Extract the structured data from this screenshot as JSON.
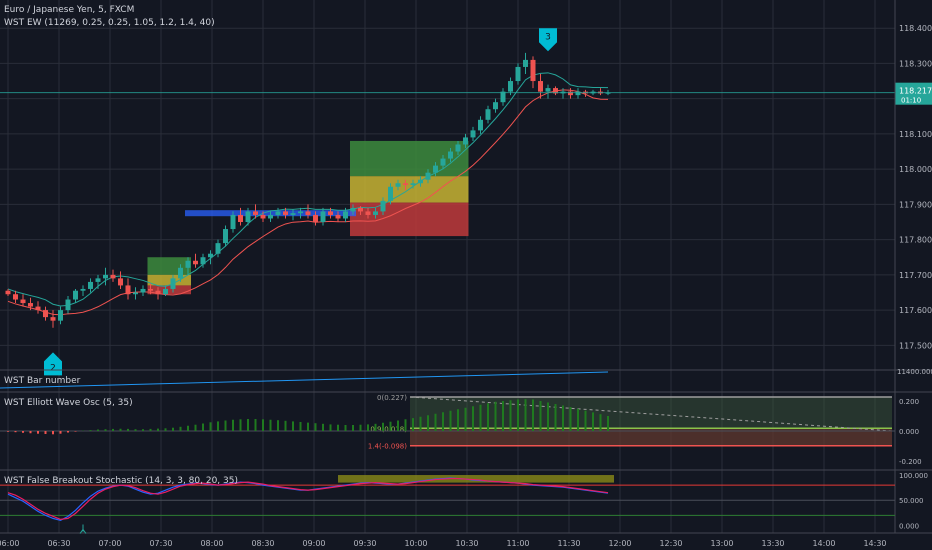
{
  "header": {
    "symbol": "Euro / Japanese Yen, 5, FXCM",
    "indicator": "WST EW (11269, 0.25, 0.25, 1.05, 1.2, 1.4, 40)"
  },
  "panes": {
    "bar_number": {
      "title": "WST Bar number",
      "value_label": "11400.000",
      "line_color": "#2196f3"
    },
    "ewo": {
      "title": "WST Elliott Wave Osc (5, 35)",
      "level_labels": [
        "0(0.227)",
        "0.9(0.018)",
        "1.4(-0.098)"
      ],
      "ticks": [
        "0.200",
        "0.000",
        "-0.200"
      ]
    },
    "stoch": {
      "title": "WST False Breakout Stochastic (14, 3, 3, 80, 20, 35)",
      "ticks": [
        "100.000",
        "50.000",
        "0.000"
      ]
    }
  },
  "main": {
    "price_ticks": [
      "118.400",
      "118.300",
      "118.200",
      "118.100",
      "118.000",
      "117.900",
      "117.800",
      "117.700",
      "117.600",
      "117.500"
    ],
    "last_price": "118.217",
    "countdown": "01:10",
    "wave_labels": [
      {
        "label": "2",
        "price": 117.48,
        "bar": 6
      },
      {
        "label": "3",
        "price": 118.36,
        "bar": 72
      }
    ]
  },
  "time_axis": [
    "06:00",
    "06:30",
    "07:00",
    "07:30",
    "08:00",
    "08:30",
    "09:00",
    "09:30",
    "10:00",
    "10:30",
    "11:00",
    "11:30",
    "12:00",
    "12:30",
    "13:00",
    "13:30",
    "14:00",
    "14:30"
  ],
  "colors": {
    "background": "#131722",
    "grid": "#2a2e39",
    "up": "#26a69a",
    "down": "#ef5350",
    "zone_green": "#3d8b3d",
    "zone_yellow": "#c8b432",
    "zone_red": "#c0393b",
    "hline": "#2962ff",
    "ewo_bar": "#1f7a1f",
    "stoch_k": "#2962ff",
    "stoch_d": "#e91e63",
    "marker": "#00bcd4"
  },
  "chart_data": [
    {
      "type": "candlestick",
      "title": "Euro / Japanese Yen, 5, FXCM",
      "y_range": [
        117.43,
        118.48
      ],
      "bar_count": 81,
      "candles": [
        [
          117.655,
          117.66,
          117.64,
          117.645
        ],
        [
          117.645,
          117.655,
          117.62,
          117.63
        ],
        [
          117.63,
          117.645,
          117.61,
          117.62
        ],
        [
          117.62,
          117.635,
          117.6,
          117.61
        ],
        [
          117.61,
          117.625,
          117.59,
          117.6
        ],
        [
          117.6,
          117.61,
          117.57,
          117.58
        ],
        [
          117.58,
          117.6,
          117.55,
          117.57
        ],
        [
          117.57,
          117.61,
          117.56,
          117.6
        ],
        [
          117.6,
          117.64,
          117.59,
          117.63
        ],
        [
          117.63,
          117.66,
          117.62,
          117.655
        ],
        [
          117.655,
          117.67,
          117.64,
          117.66
        ],
        [
          117.66,
          117.69,
          117.65,
          117.68
        ],
        [
          117.68,
          117.7,
          117.66,
          117.69
        ],
        [
          117.69,
          117.72,
          117.67,
          117.7
        ],
        [
          117.7,
          117.715,
          117.68,
          117.69
        ],
        [
          117.69,
          117.71,
          117.66,
          117.67
        ],
        [
          117.67,
          117.69,
          117.63,
          117.645
        ],
        [
          117.645,
          117.665,
          117.63,
          117.65
        ],
        [
          117.65,
          117.67,
          117.64,
          117.66
        ],
        [
          117.66,
          117.675,
          117.645,
          117.655
        ],
        [
          117.655,
          117.665,
          117.63,
          117.645
        ],
        [
          117.645,
          117.67,
          117.64,
          117.66
        ],
        [
          117.66,
          117.7,
          117.65,
          117.69
        ],
        [
          117.69,
          117.73,
          117.68,
          117.72
        ],
        [
          117.72,
          117.75,
          117.7,
          117.74
        ],
        [
          117.74,
          117.76,
          117.72,
          117.73
        ],
        [
          117.73,
          117.76,
          117.72,
          117.75
        ],
        [
          117.75,
          117.77,
          117.73,
          117.76
        ],
        [
          117.76,
          117.8,
          117.75,
          117.79
        ],
        [
          117.79,
          117.84,
          117.78,
          117.83
        ],
        [
          117.83,
          117.88,
          117.82,
          117.87
        ],
        [
          117.87,
          117.89,
          117.84,
          117.85
        ],
        [
          117.85,
          117.89,
          117.84,
          117.88
        ],
        [
          117.88,
          117.9,
          117.86,
          117.87
        ],
        [
          117.87,
          117.88,
          117.85,
          117.86
        ],
        [
          117.86,
          117.88,
          117.85,
          117.87
        ],
        [
          117.87,
          117.89,
          117.86,
          117.88
        ],
        [
          117.88,
          117.89,
          117.86,
          117.87
        ],
        [
          117.87,
          117.885,
          117.855,
          117.875
        ],
        [
          117.875,
          117.89,
          117.86,
          117.88
        ],
        [
          117.88,
          117.9,
          117.86,
          117.87
        ],
        [
          117.87,
          117.88,
          117.84,
          117.85
        ],
        [
          117.85,
          117.89,
          117.84,
          117.88
        ],
        [
          117.88,
          117.89,
          117.86,
          117.87
        ],
        [
          117.87,
          117.88,
          117.85,
          117.86
        ],
        [
          117.86,
          117.89,
          117.85,
          117.88
        ],
        [
          117.88,
          117.9,
          117.87,
          117.89
        ],
        [
          117.89,
          117.895,
          117.87,
          117.88
        ],
        [
          117.88,
          117.89,
          117.86,
          117.87
        ],
        [
          117.87,
          117.89,
          117.86,
          117.88
        ],
        [
          117.88,
          117.92,
          117.87,
          117.91
        ],
        [
          117.91,
          117.96,
          117.9,
          117.95
        ],
        [
          117.95,
          117.97,
          117.94,
          117.96
        ],
        [
          117.96,
          117.97,
          117.94,
          117.955
        ],
        [
          117.955,
          117.97,
          117.945,
          117.96
        ],
        [
          117.96,
          117.98,
          117.95,
          117.97
        ],
        [
          117.97,
          118.0,
          117.96,
          117.99
        ],
        [
          117.99,
          118.02,
          117.98,
          118.01
        ],
        [
          118.01,
          118.04,
          118.0,
          118.03
        ],
        [
          118.03,
          118.06,
          118.02,
          118.05
        ],
        [
          118.05,
          118.08,
          118.04,
          118.07
        ],
        [
          118.07,
          118.1,
          118.06,
          118.09
        ],
        [
          118.09,
          118.12,
          118.08,
          118.11
        ],
        [
          118.11,
          118.15,
          118.1,
          118.14
        ],
        [
          118.14,
          118.18,
          118.13,
          118.17
        ],
        [
          118.17,
          118.2,
          118.16,
          118.19
        ],
        [
          118.19,
          118.23,
          118.18,
          118.22
        ],
        [
          118.22,
          118.26,
          118.21,
          118.25
        ],
        [
          118.25,
          118.3,
          118.24,
          118.29
        ],
        [
          118.29,
          118.33,
          118.27,
          118.31
        ],
        [
          118.31,
          118.32,
          118.23,
          118.25
        ],
        [
          118.25,
          118.27,
          118.2,
          118.22
        ],
        [
          118.22,
          118.24,
          118.2,
          118.23
        ],
        [
          118.23,
          118.235,
          118.21,
          118.215
        ],
        [
          118.215,
          118.23,
          118.2,
          118.22
        ],
        [
          118.22,
          118.23,
          118.2,
          118.21
        ],
        [
          118.21,
          118.23,
          118.2,
          118.22
        ],
        [
          118.22,
          118.225,
          118.205,
          118.215
        ],
        [
          118.215,
          118.225,
          118.21,
          118.22
        ],
        [
          118.22,
          118.23,
          118.21,
          118.215
        ],
        [
          118.215,
          118.225,
          118.21,
          118.217
        ]
      ],
      "zones": [
        {
          "from_bar": 19,
          "to_bar": 24,
          "green": [
            117.75,
            117.7
          ],
          "yellow": [
            117.7,
            117.67
          ],
          "red": [
            117.67,
            117.645
          ]
        },
        {
          "from_bar": 46,
          "to_bar": 61,
          "green": [
            118.08,
            117.98
          ],
          "yellow": [
            117.98,
            117.905
          ],
          "red": [
            117.905,
            117.81
          ]
        }
      ],
      "horizontal_line": {
        "from_bar": 24,
        "to_bar": 46,
        "price": 117.875
      }
    },
    {
      "type": "bar",
      "title": "WST Elliott Wave Osc (5, 35)",
      "y_range": [
        -0.26,
        0.26
      ],
      "values": [
        -0.005,
        -0.008,
        -0.012,
        -0.015,
        -0.018,
        -0.02,
        -0.022,
        -0.018,
        -0.01,
        -0.004,
        0.002,
        0.006,
        0.01,
        0.012,
        0.014,
        0.015,
        0.014,
        0.012,
        0.012,
        0.014,
        0.016,
        0.018,
        0.022,
        0.028,
        0.035,
        0.042,
        0.05,
        0.058,
        0.064,
        0.07,
        0.075,
        0.078,
        0.08,
        0.08,
        0.078,
        0.075,
        0.072,
        0.068,
        0.064,
        0.06,
        0.056,
        0.052,
        0.048,
        0.044,
        0.042,
        0.04,
        0.04,
        0.042,
        0.044,
        0.048,
        0.055,
        0.062,
        0.07,
        0.078,
        0.086,
        0.095,
        0.105,
        0.115,
        0.125,
        0.135,
        0.145,
        0.155,
        0.165,
        0.175,
        0.185,
        0.195,
        0.2,
        0.205,
        0.21,
        0.212,
        0.21,
        0.2,
        0.19,
        0.18,
        0.17,
        0.16,
        0.148,
        0.136,
        0.124,
        0.112,
        0.1
      ]
    },
    {
      "type": "line",
      "title": "WST False Breakout Stochastic (14, 3, 3, 80, 20, 35)",
      "y_range": [
        -15,
        110
      ],
      "series": [
        {
          "values": [
            62,
            55,
            48,
            38,
            28,
            20,
            14,
            10,
            18,
            30,
            45,
            58,
            68,
            74,
            78,
            80,
            78,
            72,
            66,
            62,
            64,
            70,
            76,
            80,
            82,
            84,
            83,
            81,
            80,
            82,
            84,
            86,
            85,
            83,
            80,
            78,
            76,
            74,
            72,
            70,
            70,
            72,
            74,
            76,
            78,
            80,
            82,
            84,
            85,
            84,
            83,
            82,
            82,
            84,
            86,
            88,
            90,
            92,
            93,
            94,
            93,
            92,
            90,
            89,
            88,
            87,
            86,
            85,
            84,
            82,
            80,
            79,
            78,
            77,
            76,
            74,
            72,
            70,
            68,
            66,
            64
          ]
        },
        {
          "values": [
            65,
            60,
            52,
            42,
            32,
            24,
            18,
            12,
            14,
            24,
            38,
            52,
            64,
            72,
            77,
            80,
            79,
            75,
            69,
            64,
            62,
            66,
            72,
            78,
            81,
            83,
            84,
            82,
            80,
            81,
            83,
            85,
            86,
            84,
            82,
            79,
            77,
            75,
            73,
            71,
            70,
            71,
            73,
            75,
            77,
            79,
            81,
            83,
            84,
            85,
            84,
            83,
            82,
            83,
            85,
            87,
            89,
            91,
            92,
            93,
            93,
            92,
            91,
            90,
            88,
            87,
            86,
            85,
            84,
            83,
            81,
            80,
            79,
            78,
            77,
            75,
            73,
            71,
            69,
            67,
            65
          ]
        }
      ]
    }
  ]
}
